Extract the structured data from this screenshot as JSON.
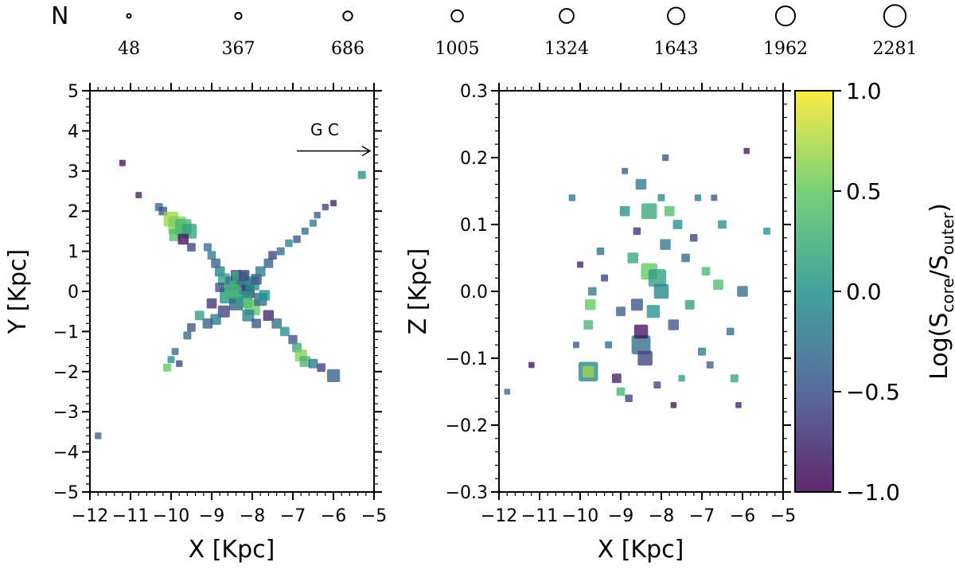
{
  "legend": {
    "title": "N",
    "sizes": [
      "48",
      "367",
      "686",
      "1005",
      "1324",
      "1643",
      "1962",
      "2281"
    ]
  },
  "colorbar": {
    "label_main": "Log(S",
    "label_sub1": "core",
    "label_mid": "/S",
    "label_sub2": "outer",
    "label_end": ")",
    "colormap": "viridis",
    "range": [
      -1.0,
      1.0
    ],
    "ticks": [
      "1.0",
      "0.5",
      "0.0",
      "−0.5",
      "−1.0"
    ],
    "tick_values": [
      1.0,
      0.5,
      0.0,
      -0.5,
      -1.0
    ]
  },
  "chart_data": [
    {
      "type": "scatter",
      "name": "xy-panel",
      "xlabel": "X [Kpc]",
      "ylabel": "Y [Kpc]",
      "xlim": [
        -12,
        -5
      ],
      "ylim": [
        -5,
        5
      ],
      "xticks": [
        "−12",
        "−11",
        "−10",
        "−9",
        "−8",
        "−7",
        "−6",
        "−5"
      ],
      "xtick_values": [
        -12,
        -11,
        -10,
        -9,
        -8,
        -7,
        -6,
        -5
      ],
      "yticks": [
        "5",
        "4",
        "3",
        "2",
        "1",
        "0",
        "−1",
        "−2",
        "−3",
        "−4",
        "−5"
      ],
      "ytick_values": [
        5,
        4,
        3,
        2,
        1,
        0,
        -1,
        -2,
        -3,
        -4,
        -5
      ],
      "annotation": {
        "text": "G C",
        "arrow_from": [
          -6.9,
          3.5
        ],
        "arrow_to": [
          -5.1,
          3.5
        ]
      },
      "points": [
        [
          -11.2,
          3.2,
          50,
          -0.9
        ],
        [
          -10.8,
          2.4,
          50,
          -0.8
        ],
        [
          -10.3,
          2.1,
          120,
          -0.3
        ],
        [
          -10.2,
          2.0,
          150,
          -0.5
        ],
        [
          -10.0,
          1.8,
          700,
          0.7
        ],
        [
          -9.85,
          1.65,
          1100,
          0.6
        ],
        [
          -9.7,
          1.6,
          900,
          0.3
        ],
        [
          -9.55,
          1.5,
          700,
          0.15
        ],
        [
          -9.9,
          1.4,
          400,
          0.4
        ],
        [
          -9.7,
          1.3,
          300,
          -0.9
        ],
        [
          -9.5,
          1.1,
          150,
          -0.6
        ],
        [
          -9.1,
          1.1,
          120,
          -0.3
        ],
        [
          -9.0,
          0.9,
          150,
          -0.2
        ],
        [
          -8.9,
          0.7,
          200,
          -0.4
        ],
        [
          -8.8,
          0.5,
          250,
          -0.1
        ],
        [
          -8.7,
          0.3,
          400,
          0.1
        ],
        [
          -8.5,
          0.2,
          600,
          -0.2
        ],
        [
          -8.4,
          0.4,
          300,
          -0.6
        ],
        [
          -8.3,
          0.3,
          800,
          0.2
        ],
        [
          -8.2,
          0.1,
          700,
          -0.3
        ],
        [
          -8.1,
          0.0,
          500,
          -0.7
        ],
        [
          -8.0,
          0.2,
          600,
          0.0
        ],
        [
          -7.9,
          0.3,
          300,
          -0.5
        ],
        [
          -7.8,
          0.5,
          250,
          -0.2
        ],
        [
          -7.6,
          0.7,
          200,
          -0.4
        ],
        [
          -7.5,
          0.9,
          150,
          -0.6
        ],
        [
          -7.3,
          1.0,
          120,
          -0.3
        ],
        [
          -7.1,
          1.2,
          100,
          -0.1
        ],
        [
          -6.9,
          1.3,
          100,
          -0.5
        ],
        [
          -6.7,
          1.5,
          80,
          -0.3
        ],
        [
          -6.5,
          1.7,
          80,
          -0.2
        ],
        [
          -6.4,
          1.9,
          60,
          -0.4
        ],
        [
          -6.2,
          2.1,
          60,
          -0.6
        ],
        [
          -6.0,
          2.2,
          50,
          -0.8
        ],
        [
          -5.3,
          2.9,
          120,
          0.0
        ],
        [
          -8.6,
          -0.1,
          900,
          0.0
        ],
        [
          -8.4,
          -0.3,
          600,
          -0.4
        ],
        [
          -8.2,
          -0.2,
          1000,
          0.1
        ],
        [
          -8.0,
          -0.4,
          800,
          0.5
        ],
        [
          -7.8,
          -0.2,
          500,
          -0.3
        ],
        [
          -8.7,
          -0.5,
          400,
          -0.6
        ],
        [
          -8.9,
          -0.7,
          300,
          -0.2
        ],
        [
          -9.1,
          -0.8,
          250,
          -0.4
        ],
        [
          -9.3,
          -0.6,
          200,
          0.1
        ],
        [
          -9.5,
          -0.9,
          150,
          -0.5
        ],
        [
          -9.6,
          -1.1,
          120,
          -0.3
        ],
        [
          -7.6,
          -0.6,
          300,
          -0.8
        ],
        [
          -7.4,
          -0.8,
          250,
          -0.3
        ],
        [
          -7.2,
          -1.0,
          200,
          0.0
        ],
        [
          -7.0,
          -1.2,
          180,
          -0.5
        ],
        [
          -6.9,
          -1.4,
          200,
          0.2
        ],
        [
          -6.8,
          -1.6,
          400,
          0.6
        ],
        [
          -6.7,
          -1.75,
          300,
          0.3
        ],
        [
          -6.5,
          -1.8,
          200,
          -0.2
        ],
        [
          -6.3,
          -1.9,
          150,
          -0.6
        ],
        [
          -6.0,
          -2.1,
          500,
          -0.4
        ],
        [
          -9.9,
          -1.5,
          80,
          -0.3
        ],
        [
          -10.0,
          -1.7,
          80,
          0.0
        ],
        [
          -10.1,
          -1.9,
          120,
          0.5
        ],
        [
          -9.8,
          -1.8,
          60,
          -0.6
        ],
        [
          -11.8,
          -3.6,
          60,
          -0.4
        ],
        [
          -8.5,
          0.0,
          700,
          0.3
        ],
        [
          -8.2,
          0.4,
          300,
          -0.6
        ],
        [
          -9.0,
          -0.3,
          250,
          -0.7
        ],
        [
          -7.7,
          -0.1,
          300,
          0.0
        ],
        [
          -8.8,
          0.1,
          200,
          -0.5
        ],
        [
          -8.1,
          -0.6,
          400,
          -0.1
        ],
        [
          -7.9,
          -0.8,
          200,
          -0.5
        ]
      ]
    },
    {
      "type": "scatter",
      "name": "xz-panel",
      "xlabel": "X [Kpc]",
      "ylabel": "Z [Kpc]",
      "xlim": [
        -12,
        -5
      ],
      "ylim": [
        -0.3,
        0.3
      ],
      "xticks": [
        "−12",
        "−11",
        "−10",
        "−9",
        "−8",
        "−7",
        "−6",
        "−5"
      ],
      "xtick_values": [
        -12,
        -11,
        -10,
        -9,
        -8,
        -7,
        -6,
        -5
      ],
      "yticks": [
        "0.3",
        "0.2",
        "0.1",
        "0.0",
        "−0.1",
        "−0.2",
        "−0.3"
      ],
      "ytick_values": [
        0.3,
        0.2,
        0.1,
        0.0,
        -0.1,
        -0.2,
        -0.3
      ],
      "points": [
        [
          -9.8,
          -0.12,
          1400,
          -0.1
        ],
        [
          -9.8,
          -0.12,
          350,
          0.7
        ],
        [
          -9.75,
          -0.02,
          300,
          0.5
        ],
        [
          -9.8,
          -0.05,
          200,
          0.3
        ],
        [
          -9.7,
          0.0,
          150,
          -0.2
        ],
        [
          -9.5,
          0.06,
          100,
          -0.3
        ],
        [
          -9.4,
          0.02,
          80,
          -0.6
        ],
        [
          -10.2,
          0.14,
          60,
          -0.2
        ],
        [
          -10.0,
          0.04,
          50,
          -0.8
        ],
        [
          -10.1,
          -0.08,
          50,
          -0.5
        ],
        [
          -11.2,
          -0.11,
          40,
          -0.9
        ],
        [
          -11.8,
          -0.15,
          40,
          -0.3
        ],
        [
          -8.5,
          -0.08,
          1300,
          -0.3
        ],
        [
          -8.5,
          -0.06,
          600,
          -0.9
        ],
        [
          -8.4,
          -0.1,
          700,
          -0.6
        ],
        [
          -8.3,
          0.12,
          800,
          0.2
        ],
        [
          -8.3,
          0.03,
          900,
          0.5
        ],
        [
          -8.1,
          0.02,
          1100,
          0.1
        ],
        [
          -8.0,
          0.0,
          700,
          -0.1
        ],
        [
          -8.2,
          -0.03,
          500,
          0.0
        ],
        [
          -8.6,
          -0.02,
          400,
          -0.5
        ],
        [
          -8.7,
          0.05,
          300,
          0.2
        ],
        [
          -8.5,
          0.16,
          300,
          -0.2
        ],
        [
          -8.9,
          0.12,
          250,
          0.0
        ],
        [
          -9.0,
          -0.03,
          200,
          -0.4
        ],
        [
          -9.1,
          -0.13,
          200,
          -0.8
        ],
        [
          -9.0,
          -0.15,
          150,
          0.3
        ],
        [
          -8.8,
          -0.16,
          100,
          -0.6
        ],
        [
          -7.9,
          0.07,
          300,
          -0.2
        ],
        [
          -7.8,
          0.12,
          250,
          0.4
        ],
        [
          -7.7,
          -0.05,
          300,
          -0.5
        ],
        [
          -7.6,
          0.1,
          200,
          0.0
        ],
        [
          -7.4,
          0.05,
          150,
          -0.3
        ],
        [
          -7.3,
          -0.02,
          200,
          0.1
        ],
        [
          -7.2,
          0.08,
          100,
          -0.6
        ],
        [
          -7.0,
          -0.09,
          120,
          -0.2
        ],
        [
          -6.9,
          0.03,
          150,
          0.3
        ],
        [
          -6.8,
          -0.11,
          80,
          -0.4
        ],
        [
          -6.6,
          0.01,
          250,
          0.4
        ],
        [
          -6.5,
          0.1,
          150,
          0.0
        ],
        [
          -6.3,
          -0.06,
          100,
          -0.3
        ],
        [
          -6.2,
          -0.13,
          120,
          0.2
        ],
        [
          -6.0,
          0.0,
          300,
          -0.3
        ],
        [
          -6.1,
          -0.17,
          40,
          -0.8
        ],
        [
          -5.4,
          0.09,
          80,
          0.0
        ],
        [
          -5.9,
          0.21,
          40,
          -0.9
        ],
        [
          -7.9,
          0.2,
          60,
          -0.5
        ],
        [
          -7.7,
          -0.17,
          40,
          -0.9
        ],
        [
          -8.9,
          0.18,
          50,
          -0.4
        ],
        [
          -9.3,
          -0.08,
          80,
          -0.3
        ],
        [
          -7.5,
          -0.13,
          60,
          0.1
        ],
        [
          -8.1,
          -0.14,
          80,
          -0.6
        ],
        [
          -8.6,
          0.09,
          100,
          -0.7
        ],
        [
          -7.1,
          0.14,
          60,
          -0.2
        ],
        [
          -6.7,
          0.14,
          50,
          -0.5
        ],
        [
          -8.0,
          0.14,
          80,
          -0.1
        ]
      ]
    }
  ]
}
